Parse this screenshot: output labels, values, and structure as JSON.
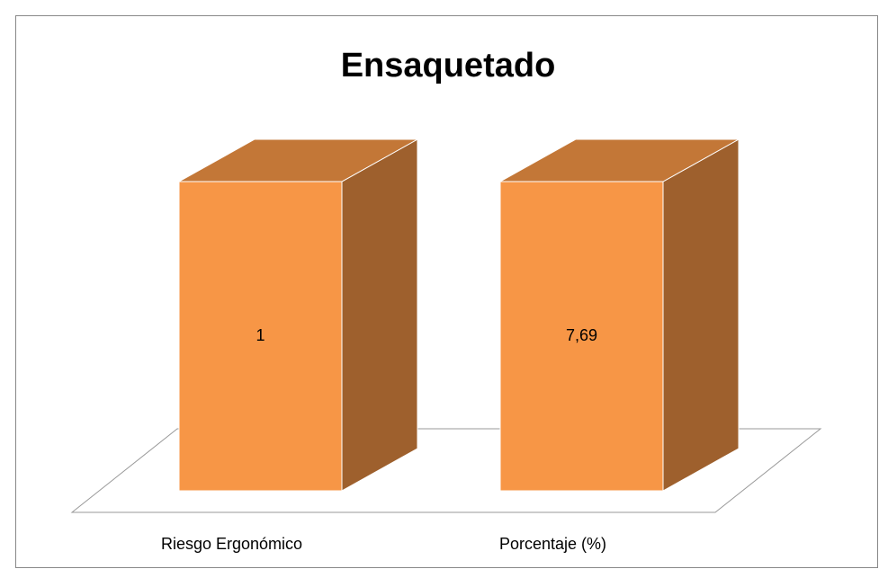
{
  "chart_data": {
    "type": "bar3d",
    "title": "Ensaquetado",
    "categories": [
      "Riesgo Ergonómico",
      "Porcentaje (%)"
    ],
    "values": [
      1,
      7.69
    ],
    "value_labels": [
      "1",
      "7,69"
    ],
    "color": "#f79646",
    "stacked_percent": true
  }
}
